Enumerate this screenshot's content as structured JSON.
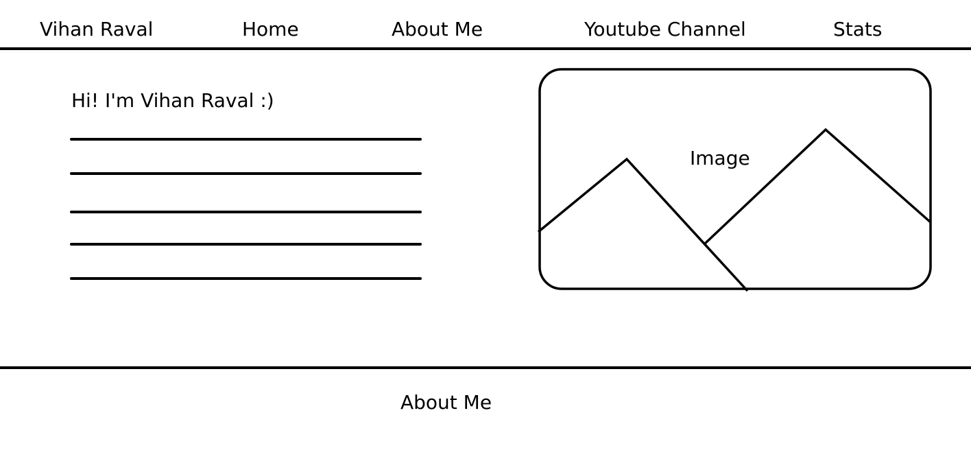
{
  "header": {
    "brand": "Vihan Raval",
    "nav": [
      {
        "label": "Home"
      },
      {
        "label": "About Me"
      },
      {
        "label": "Youtube Channel"
      },
      {
        "label": "Stats"
      }
    ]
  },
  "hero": {
    "greeting": "Hi! I'm Vihan Raval :)",
    "text_line_count": 5,
    "image_label": "Image"
  },
  "section": {
    "title": "About Me"
  },
  "colors": {
    "ink": "#000000",
    "background": "#ffffff"
  }
}
